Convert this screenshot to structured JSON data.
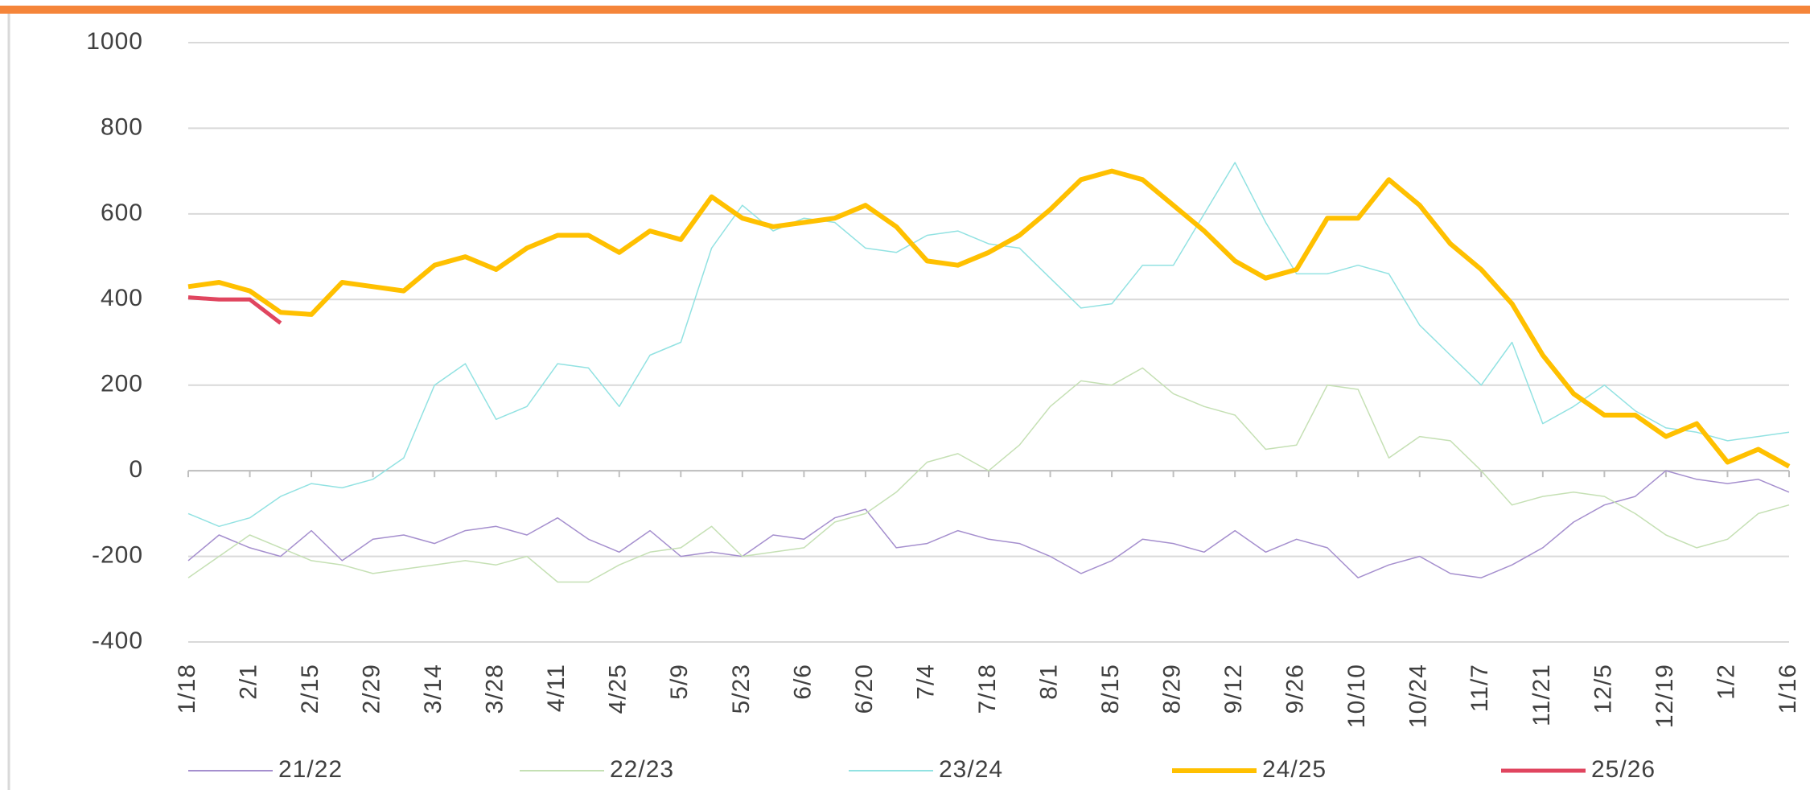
{
  "chart_data": {
    "type": "line",
    "categories": [
      "1/18",
      null,
      "2/1",
      null,
      "2/15",
      null,
      "2/29",
      null,
      "3/14",
      null,
      "3/28",
      null,
      "4/11",
      null,
      "4/25",
      null,
      "5/9",
      null,
      "5/23",
      null,
      "6/6",
      null,
      "6/20",
      null,
      "7/4",
      null,
      "7/18",
      null,
      "8/1",
      null,
      "8/15",
      null,
      "8/29",
      null,
      "9/12",
      null,
      "9/26",
      null,
      "10/10",
      null,
      "10/24",
      null,
      "11/7",
      null,
      "11/21",
      null,
      "12/5",
      null,
      "12/19",
      null,
      "1/2",
      null,
      "1/16"
    ],
    "series": [
      {
        "name": "21/22",
        "color": "#a58fce",
        "values": [
          -210,
          -150,
          -180,
          -200,
          -140,
          -210,
          -160,
          -150,
          -170,
          -140,
          -130,
          -150,
          -110,
          -160,
          -190,
          -140,
          -200,
          -190,
          -200,
          -150,
          -160,
          -110,
          -90,
          -180,
          -170,
          -140,
          -160,
          -170,
          -200,
          -240,
          -210,
          -160,
          -170,
          -190,
          -140,
          -190,
          -160,
          -180,
          -250,
          -220,
          -200,
          -240,
          -250,
          -220,
          -180,
          -120,
          -80,
          -60,
          0,
          -20,
          -30,
          -20,
          -50
        ]
      },
      {
        "name": "22/23",
        "color": "#c5e0b4",
        "values": [
          -250,
          -200,
          -150,
          -180,
          -210,
          -220,
          -240,
          -230,
          -220,
          -210,
          -220,
          -200,
          -260,
          -260,
          -220,
          -190,
          -180,
          -130,
          -200,
          -190,
          -180,
          -120,
          -100,
          -50,
          20,
          40,
          0,
          60,
          150,
          210,
          200,
          240,
          180,
          150,
          130,
          50,
          60,
          200,
          190,
          30,
          80,
          70,
          0,
          -80,
          -60,
          -50,
          -60,
          -100,
          -150,
          -180,
          -160,
          -100,
          -80
        ]
      },
      {
        "name": "23/24",
        "color": "#92e2e2",
        "values": [
          -100,
          -130,
          -110,
          -60,
          -30,
          -40,
          -20,
          30,
          200,
          250,
          120,
          150,
          250,
          240,
          150,
          270,
          300,
          520,
          620,
          560,
          590,
          580,
          520,
          510,
          550,
          560,
          530,
          520,
          450,
          380,
          390,
          480,
          480,
          600,
          720,
          580,
          460,
          460,
          480,
          460,
          340,
          270,
          200,
          300,
          110,
          150,
          200,
          140,
          100,
          90,
          70,
          80,
          90
        ]
      },
      {
        "name": "24/25",
        "color": "#ffc000",
        "values": [
          430,
          440,
          420,
          370,
          365,
          440,
          430,
          420,
          480,
          500,
          470,
          520,
          550,
          550,
          510,
          560,
          540,
          640,
          590,
          570,
          580,
          590,
          620,
          570,
          490,
          480,
          510,
          550,
          610,
          680,
          700,
          680,
          620,
          560,
          490,
          450,
          470,
          590,
          590,
          680,
          620,
          530,
          470,
          390,
          270,
          180,
          130,
          130,
          80,
          110,
          20,
          50,
          10
        ]
      },
      {
        "name": "25/26",
        "color": "#e0455f",
        "values": [
          405,
          400,
          400,
          345,
          null,
          null,
          null,
          null,
          null,
          null,
          null,
          null,
          null,
          null,
          null,
          null,
          null,
          null,
          null,
          null,
          null,
          null,
          null,
          null,
          null,
          null,
          null,
          null,
          null,
          null,
          null,
          null,
          null,
          null,
          null,
          null,
          null,
          null,
          null,
          null,
          null,
          null,
          null,
          null,
          null,
          null,
          null,
          null,
          null,
          null,
          null,
          null,
          null
        ]
      }
    ],
    "ylim": [
      -400,
      1000
    ],
    "yticks": [
      -400,
      -200,
      0,
      200,
      400,
      600,
      800,
      1000
    ],
    "grid": true,
    "legend": "bottom"
  }
}
